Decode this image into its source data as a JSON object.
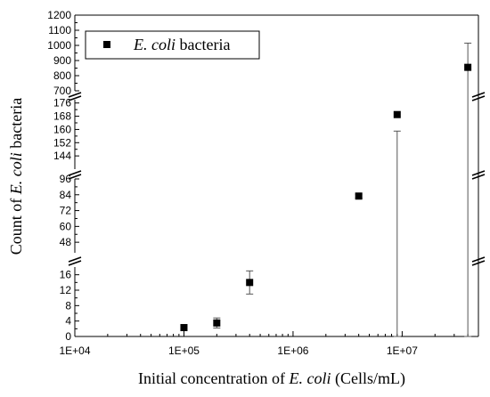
{
  "chart_data": {
    "type": "scatter",
    "xscale": "log",
    "xlim": [
      10000,
      50000000
    ],
    "x_ticks": [
      {
        "value": 10000,
        "label": "1E+04"
      },
      {
        "value": 100000,
        "label": "1E+05"
      },
      {
        "value": 1000000,
        "label": "1E+06"
      },
      {
        "value": 10000000,
        "label": "1E+07"
      }
    ],
    "xlabel": {
      "prefix": "Initial concentration of ",
      "italic": "E. coli",
      "suffix": " (Cells/mL)"
    },
    "ylabel": {
      "prefix": "Count of ",
      "italic": "E. coli",
      "suffix": " bacteria"
    },
    "y_axis_breaks": true,
    "y_segments": [
      {
        "range": [
          0,
          18
        ],
        "ticks": [
          "0",
          "4",
          "8",
          "12",
          "16"
        ]
      },
      {
        "range": [
          40,
          96
        ],
        "ticks": [
          "48",
          "60",
          "72",
          "84",
          "96"
        ]
      },
      {
        "range": [
          136,
          178
        ],
        "ticks": [
          "144",
          "152",
          "160",
          "168",
          "176"
        ]
      },
      {
        "range": [
          700,
          1200
        ],
        "ticks": [
          "700",
          "800",
          "900",
          "1000",
          "1100",
          "1200"
        ]
      }
    ],
    "legend": {
      "italic": "E. coli",
      "suffix": " bacteria",
      "position": "top-left"
    },
    "series": [
      {
        "name": "E. coli bacteria",
        "marker": "square",
        "color": "#000000",
        "points": [
          {
            "x": 100000,
            "y": 2.3,
            "err": 0
          },
          {
            "x": 200000,
            "y": 3.5,
            "err": 1.3
          },
          {
            "x": 400000,
            "y": 14,
            "err": 3
          },
          {
            "x": 4000000,
            "y": 83,
            "err": 1.5
          },
          {
            "x": 9000000,
            "y": 169,
            "err": 10
          },
          {
            "x": 40000000,
            "y": 855,
            "err": 160
          }
        ]
      }
    ]
  }
}
